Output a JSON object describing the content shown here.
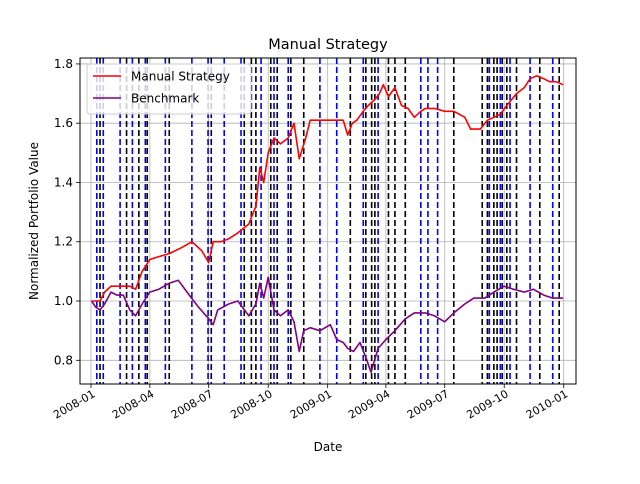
{
  "chart_data": {
    "type": "line",
    "title": "Manual Strategy",
    "xlabel": "Date",
    "ylabel": "Normalized Portfolio Value",
    "x_range": [
      "2007-12-15",
      "2010-01-20"
    ],
    "ylim": [
      0.72,
      1.82
    ],
    "grid": true,
    "legend_position": "top-left",
    "x_ticks": [
      {
        "date": "2008-01-01",
        "label": "2008-01"
      },
      {
        "date": "2008-04-01",
        "label": "2008-04"
      },
      {
        "date": "2008-07-01",
        "label": "2008-07"
      },
      {
        "date": "2008-10-01",
        "label": "2008-10"
      },
      {
        "date": "2009-01-01",
        "label": "2009-01"
      },
      {
        "date": "2009-04-01",
        "label": "2009-04"
      },
      {
        "date": "2009-07-01",
        "label": "2009-07"
      },
      {
        "date": "2009-10-01",
        "label": "2009-10"
      },
      {
        "date": "2010-01-01",
        "label": "2010-01"
      }
    ],
    "y_ticks": [
      {
        "value": 0.8,
        "label": "0.8"
      },
      {
        "value": 1.0,
        "label": "1.0"
      },
      {
        "value": 1.2,
        "label": "1.2"
      },
      {
        "value": 1.4,
        "label": "1.4"
      },
      {
        "value": 1.6,
        "label": "1.6"
      },
      {
        "value": 1.8,
        "label": "1.8"
      }
    ],
    "series": [
      {
        "name": "Manual Strategy",
        "color": "#ff0000",
        "points": [
          [
            "2008-01-02",
            1.0
          ],
          [
            "2008-01-15",
            1.0
          ],
          [
            "2008-01-22",
            1.03
          ],
          [
            "2008-02-01",
            1.05
          ],
          [
            "2008-02-15",
            1.05
          ],
          [
            "2008-03-01",
            1.05
          ],
          [
            "2008-03-10",
            1.04
          ],
          [
            "2008-03-20",
            1.1
          ],
          [
            "2008-04-01",
            1.14
          ],
          [
            "2008-04-15",
            1.15
          ],
          [
            "2008-05-01",
            1.16
          ],
          [
            "2008-05-20",
            1.18
          ],
          [
            "2008-06-05",
            1.2
          ],
          [
            "2008-06-20",
            1.17
          ],
          [
            "2008-07-01",
            1.13
          ],
          [
            "2008-07-08",
            1.2
          ],
          [
            "2008-07-20",
            1.2
          ],
          [
            "2008-08-01",
            1.21
          ],
          [
            "2008-08-15",
            1.23
          ],
          [
            "2008-09-01",
            1.26
          ],
          [
            "2008-09-12",
            1.32
          ],
          [
            "2008-09-18",
            1.45
          ],
          [
            "2008-09-24",
            1.4
          ],
          [
            "2008-10-01",
            1.5
          ],
          [
            "2008-10-10",
            1.55
          ],
          [
            "2008-10-20",
            1.53
          ],
          [
            "2008-11-01",
            1.55
          ],
          [
            "2008-11-10",
            1.6
          ],
          [
            "2008-11-18",
            1.48
          ],
          [
            "2008-11-28",
            1.55
          ],
          [
            "2008-12-05",
            1.61
          ],
          [
            "2008-12-20",
            1.61
          ],
          [
            "2009-01-05",
            1.61
          ],
          [
            "2009-01-15",
            1.61
          ],
          [
            "2009-01-25",
            1.61
          ],
          [
            "2009-02-01",
            1.56
          ],
          [
            "2009-02-08",
            1.6
          ],
          [
            "2009-02-15",
            1.61
          ],
          [
            "2009-02-25",
            1.64
          ],
          [
            "2009-03-05",
            1.66
          ],
          [
            "2009-03-15",
            1.68
          ],
          [
            "2009-03-22",
            1.7
          ],
          [
            "2009-03-28",
            1.73
          ],
          [
            "2009-04-05",
            1.69
          ],
          [
            "2009-04-15",
            1.72
          ],
          [
            "2009-04-25",
            1.66
          ],
          [
            "2009-05-05",
            1.65
          ],
          [
            "2009-05-15",
            1.62
          ],
          [
            "2009-05-25",
            1.64
          ],
          [
            "2009-06-01",
            1.65
          ],
          [
            "2009-06-15",
            1.65
          ],
          [
            "2009-07-01",
            1.64
          ],
          [
            "2009-07-15",
            1.64
          ],
          [
            "2009-08-01",
            1.62
          ],
          [
            "2009-08-10",
            1.58
          ],
          [
            "2009-08-25",
            1.58
          ],
          [
            "2009-09-05",
            1.61
          ],
          [
            "2009-09-15",
            1.62
          ],
          [
            "2009-09-25",
            1.63
          ],
          [
            "2009-10-05",
            1.66
          ],
          [
            "2009-10-20",
            1.7
          ],
          [
            "2009-11-01",
            1.72
          ],
          [
            "2009-11-10",
            1.75
          ],
          [
            "2009-11-20",
            1.76
          ],
          [
            "2009-12-01",
            1.75
          ],
          [
            "2009-12-10",
            1.74
          ],
          [
            "2009-12-20",
            1.74
          ],
          [
            "2009-12-31",
            1.73
          ]
        ]
      },
      {
        "name": "Benchmark",
        "color": "#800080",
        "points": [
          [
            "2008-01-02",
            1.0
          ],
          [
            "2008-01-08",
            0.98
          ],
          [
            "2008-01-15",
            0.97
          ],
          [
            "2008-01-22",
            0.99
          ],
          [
            "2008-02-01",
            1.03
          ],
          [
            "2008-02-10",
            1.02
          ],
          [
            "2008-02-20",
            1.02
          ],
          [
            "2008-03-01",
            0.97
          ],
          [
            "2008-03-10",
            0.95
          ],
          [
            "2008-03-20",
            0.99
          ],
          [
            "2008-04-01",
            1.03
          ],
          [
            "2008-04-15",
            1.04
          ],
          [
            "2008-05-01",
            1.06
          ],
          [
            "2008-05-15",
            1.07
          ],
          [
            "2008-06-01",
            1.02
          ],
          [
            "2008-06-15",
            0.98
          ],
          [
            "2008-07-01",
            0.94
          ],
          [
            "2008-07-08",
            0.92
          ],
          [
            "2008-07-15",
            0.97
          ],
          [
            "2008-08-01",
            0.99
          ],
          [
            "2008-08-15",
            1.0
          ],
          [
            "2008-09-01",
            0.95
          ],
          [
            "2008-09-12",
            0.99
          ],
          [
            "2008-09-18",
            1.06
          ],
          [
            "2008-09-24",
            1.01
          ],
          [
            "2008-10-01",
            1.08
          ],
          [
            "2008-10-10",
            0.97
          ],
          [
            "2008-10-20",
            0.95
          ],
          [
            "2008-11-01",
            0.97
          ],
          [
            "2008-11-10",
            0.93
          ],
          [
            "2008-11-18",
            0.83
          ],
          [
            "2008-11-25",
            0.9
          ],
          [
            "2008-12-05",
            0.91
          ],
          [
            "2008-12-20",
            0.9
          ],
          [
            "2009-01-05",
            0.92
          ],
          [
            "2009-01-15",
            0.87
          ],
          [
            "2009-01-25",
            0.86
          ],
          [
            "2009-02-01",
            0.84
          ],
          [
            "2009-02-10",
            0.83
          ],
          [
            "2009-02-20",
            0.86
          ],
          [
            "2009-03-01",
            0.81
          ],
          [
            "2009-03-09",
            0.76
          ],
          [
            "2009-03-20",
            0.84
          ],
          [
            "2009-04-01",
            0.87
          ],
          [
            "2009-04-15",
            0.9
          ],
          [
            "2009-05-01",
            0.94
          ],
          [
            "2009-05-15",
            0.96
          ],
          [
            "2009-06-01",
            0.96
          ],
          [
            "2009-06-15",
            0.95
          ],
          [
            "2009-07-01",
            0.93
          ],
          [
            "2009-07-15",
            0.96
          ],
          [
            "2009-08-01",
            0.99
          ],
          [
            "2009-08-15",
            1.01
          ],
          [
            "2009-09-01",
            1.01
          ],
          [
            "2009-09-15",
            1.03
          ],
          [
            "2009-10-01",
            1.05
          ],
          [
            "2009-10-15",
            1.04
          ],
          [
            "2009-11-01",
            1.03
          ],
          [
            "2009-11-15",
            1.04
          ],
          [
            "2009-12-01",
            1.02
          ],
          [
            "2009-12-15",
            1.01
          ],
          [
            "2009-12-31",
            1.01
          ]
        ]
      }
    ],
    "vertical_lines": [
      {
        "color": "#0000ff",
        "dates": [
          "2008-01-10",
          "2008-01-20",
          "2008-02-15",
          "2008-03-05",
          "2008-03-25",
          "2008-04-25",
          "2008-06-05",
          "2008-06-30",
          "2008-07-25",
          "2008-08-20",
          "2008-09-20",
          "2008-10-10",
          "2008-11-01",
          "2008-12-20",
          "2009-01-15",
          "2009-02-25",
          "2009-03-20",
          "2009-05-25",
          "2009-06-05",
          "2009-06-20",
          "2009-09-08",
          "2009-09-25",
          "2009-10-10",
          "2009-11-10",
          "2009-12-15"
        ]
      },
      {
        "color": "#000000",
        "dates": [
          "2008-01-15",
          "2008-02-25",
          "2008-03-15",
          "2008-03-28",
          "2008-05-01",
          "2008-07-05",
          "2008-08-25",
          "2008-09-05",
          "2008-09-12",
          "2008-10-05",
          "2008-10-15",
          "2008-11-05",
          "2008-11-25",
          "2009-02-05",
          "2009-03-01",
          "2009-03-10",
          "2009-03-15",
          "2009-04-05",
          "2009-04-15",
          "2009-05-01",
          "2009-07-15",
          "2009-08-28",
          "2009-09-05",
          "2009-09-15",
          "2009-09-20",
          "2009-09-28",
          "2009-10-05",
          "2009-10-20",
          "2009-11-25",
          "2009-12-25"
        ]
      }
    ]
  }
}
